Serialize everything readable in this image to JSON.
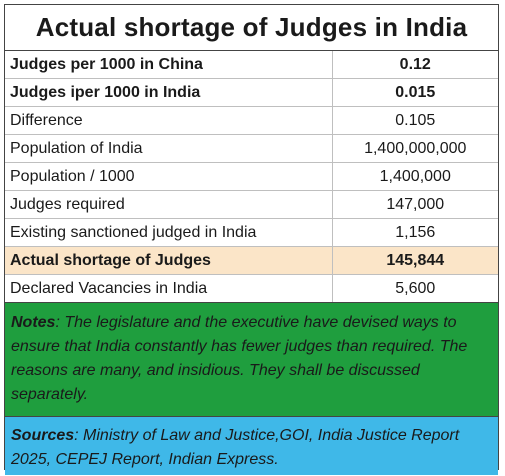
{
  "title": "Actual shortage of Judges in India",
  "rows": [
    {
      "label": "Judges per 1000 in China",
      "value": "0.12"
    },
    {
      "label": "Judges iper 1000 in India",
      "value": "0.015"
    },
    {
      "label": "Difference",
      "value": "0.105"
    },
    {
      "label": "Population of India",
      "value": "1,400,000,000"
    },
    {
      "label": "Population / 1000",
      "value": "1,400,000"
    },
    {
      "label": "Judges required",
      "value": "147,000"
    },
    {
      "label": "Existing sanctioned judged in India",
      "value": "1,156"
    },
    {
      "label": "Actual shortage of Judges",
      "value": "145,844"
    },
    {
      "label": "Declared Vacancies in India",
      "value": "5,600"
    }
  ],
  "notes": {
    "lead": "Notes",
    "text": ":  The legislature and the executive have devised ways to ensure that India constantly has fewer judges than required.  The reasons are many, and insidious. They  shall be discussed separately."
  },
  "sources": {
    "lead": "Sources",
    "text": ": Ministry of Law and Justice,GOI, India Justice Report 2025, CEPEJ Report, Indian Express."
  },
  "colors": {
    "highlight_row": "#fbe5c8",
    "notes_background": "#1f9e3e",
    "sources_background": "#3fb8e8"
  }
}
